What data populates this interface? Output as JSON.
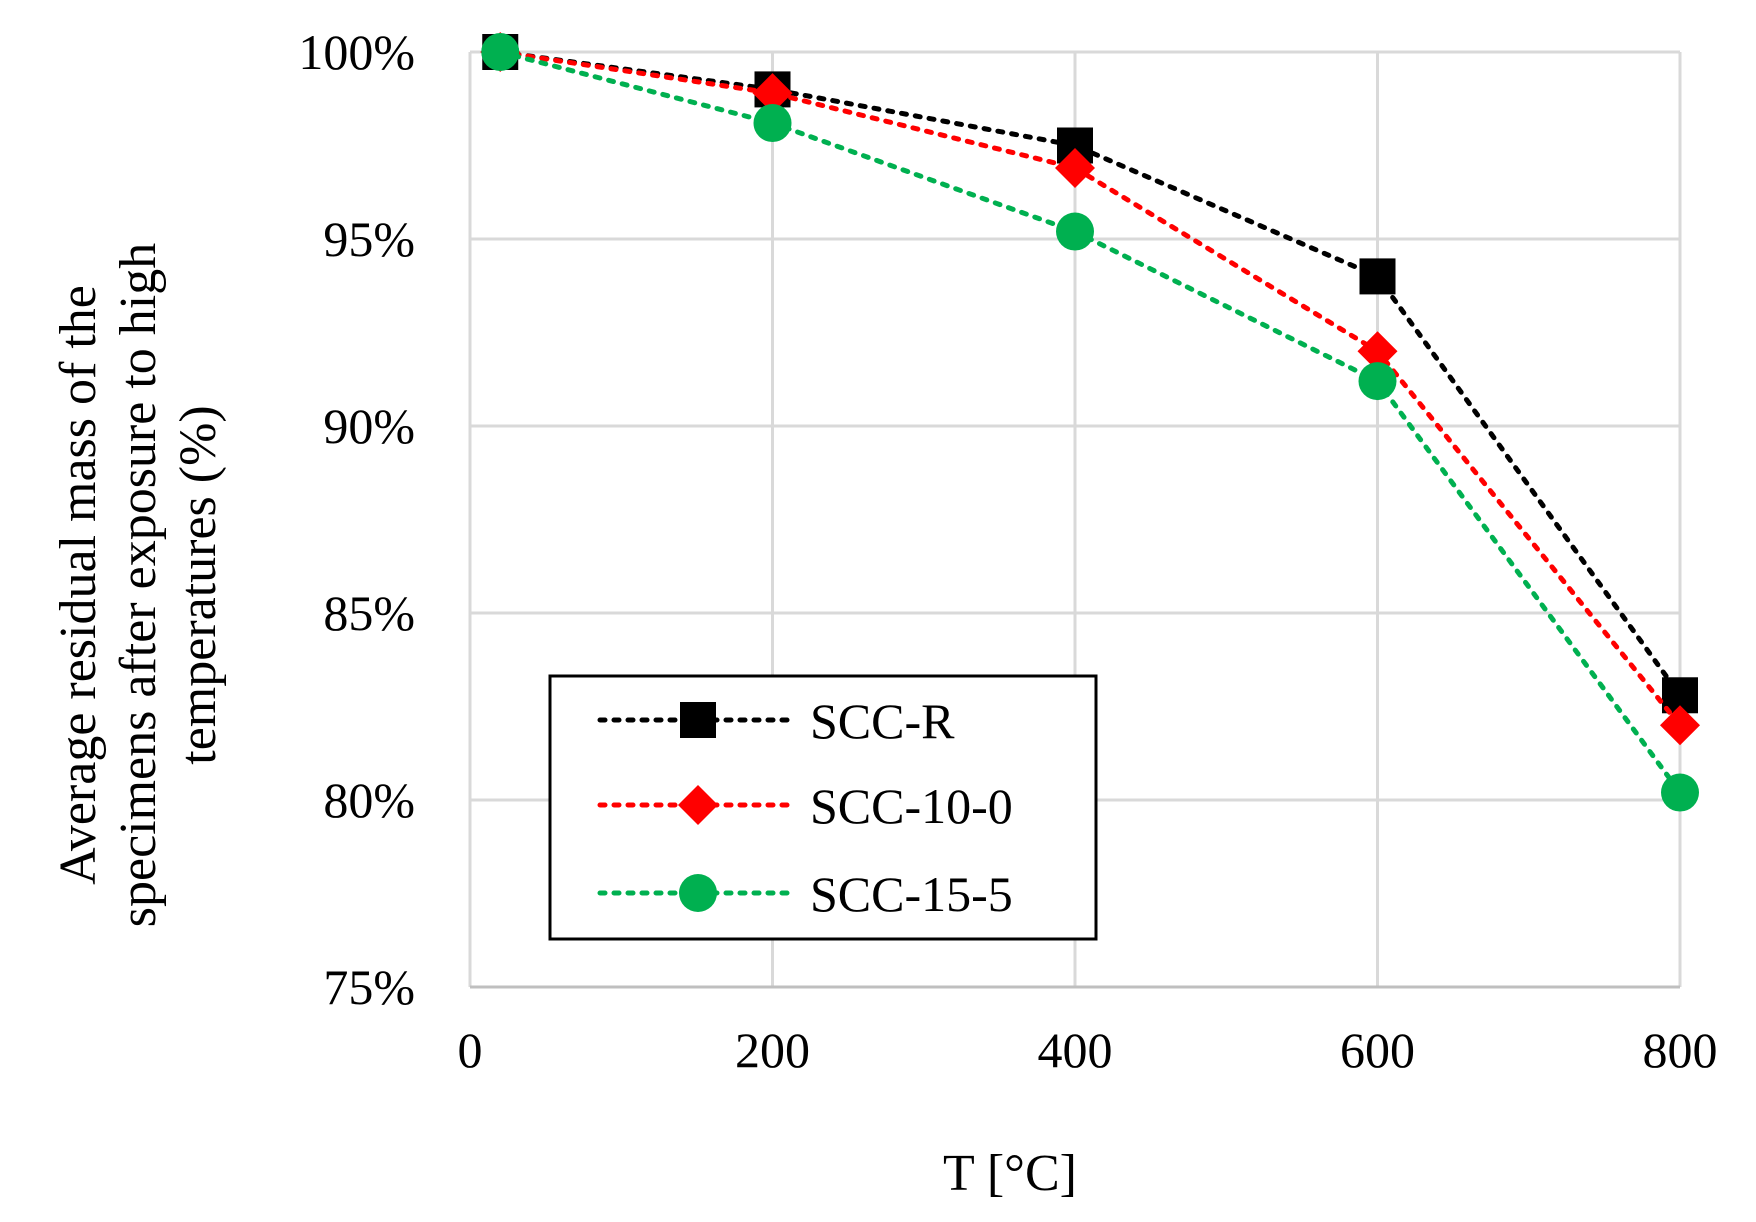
{
  "chart_data": {
    "type": "line",
    "title": "",
    "xlabel": "T [°C]",
    "ylabel_lines": [
      "Average residual mass of the",
      "specimens after exposure to high",
      "temperatures (%)"
    ],
    "xlim": [
      0,
      800
    ],
    "ylim": [
      75,
      100
    ],
    "x_ticks": [
      0,
      200,
      400,
      600,
      800
    ],
    "x_tick_labels": [
      "0",
      "200",
      "400",
      "600",
      "800"
    ],
    "y_ticks": [
      75,
      80,
      85,
      90,
      95,
      100
    ],
    "y_tick_labels": [
      "75%",
      "80%",
      "85%",
      "90%",
      "95%",
      "100%"
    ],
    "grid": true,
    "legend_position": "bottom-left",
    "x": [
      20,
      200,
      400,
      600,
      800
    ],
    "series": [
      {
        "name": "SCC-R",
        "color": "#000000",
        "marker": "square",
        "values": [
          100,
          99.0,
          97.5,
          94.0,
          82.8
        ]
      },
      {
        "name": "SCC-10-0",
        "color": "#ff0000",
        "marker": "diamond",
        "values": [
          100,
          98.9,
          96.9,
          92.0,
          82.0
        ]
      },
      {
        "name": "SCC-15-5",
        "color": "#00b050",
        "marker": "circle",
        "values": [
          100,
          98.1,
          95.2,
          91.2,
          80.2
        ]
      }
    ]
  }
}
